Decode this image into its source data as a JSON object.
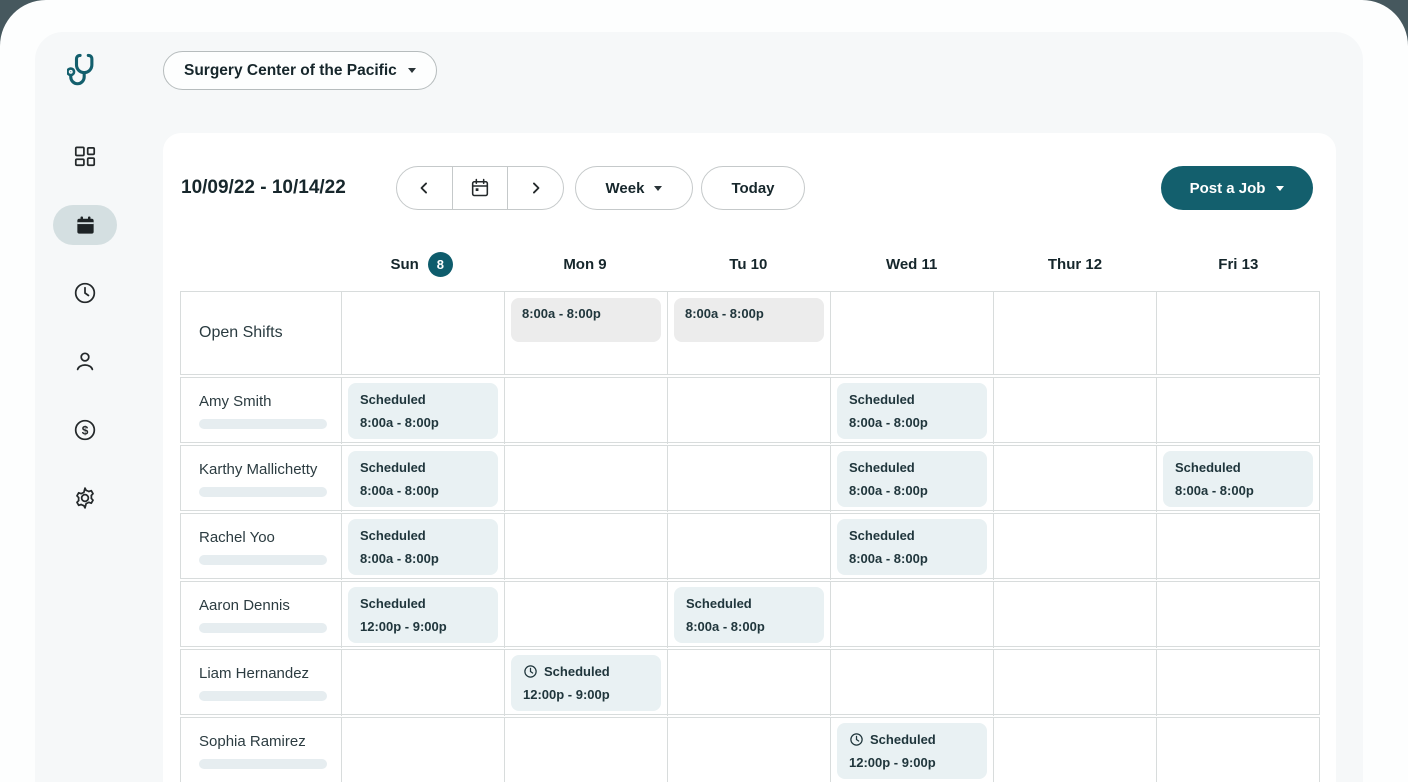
{
  "colors": {
    "accent_teal": "#135f6d",
    "badge_teal": "#0e5c6c",
    "open_chip_bg": "#ececec",
    "scheduled_chip_bg": "#e9f1f3",
    "active_nav_bg": "#d4dfe1",
    "panel_bg": "#f6f8f9",
    "outer_bg": "#46585e"
  },
  "org_selector": {
    "label": "Surgery Center of the Pacific"
  },
  "sidebar": {
    "items": [
      {
        "icon": "dashboard-icon",
        "active": false
      },
      {
        "icon": "calendar-icon",
        "active": true
      },
      {
        "icon": "clock-icon",
        "active": false
      },
      {
        "icon": "person-icon",
        "active": false
      },
      {
        "icon": "dollar-icon",
        "active": false
      },
      {
        "icon": "gear-icon",
        "active": false
      }
    ]
  },
  "toolbar": {
    "date_range": "10/09/22 - 10/14/22",
    "view": "Week",
    "today": "Today",
    "post_job": "Post a Job"
  },
  "calendar": {
    "day_headers": [
      {
        "label": "Sun",
        "badge": "8"
      },
      {
        "label": "Mon 9"
      },
      {
        "label": "Tu 10"
      },
      {
        "label": "Wed 11"
      },
      {
        "label": "Thur 12"
      },
      {
        "label": "Fri 13"
      }
    ],
    "rows": [
      {
        "name": "Open Shifts",
        "kind": "open",
        "cells": [
          null,
          {
            "variant": "open",
            "time": "8:00a - 8:00p"
          },
          {
            "variant": "open",
            "time": "8:00a - 8:00p"
          },
          null,
          null,
          null
        ]
      },
      {
        "name": "Amy Smith",
        "kind": "person",
        "cells": [
          {
            "variant": "scheduled",
            "label": "Scheduled",
            "time": "8:00a - 8:00p"
          },
          null,
          null,
          {
            "variant": "scheduled",
            "label": "Scheduled",
            "time": "8:00a - 8:00p"
          },
          null,
          null
        ]
      },
      {
        "name": "Karthy Mallichetty",
        "kind": "person",
        "cells": [
          {
            "variant": "scheduled",
            "label": "Scheduled",
            "time": "8:00a - 8:00p"
          },
          null,
          null,
          {
            "variant": "scheduled",
            "label": "Scheduled",
            "time": "8:00a - 8:00p"
          },
          null,
          {
            "variant": "scheduled",
            "label": "Scheduled",
            "time": "8:00a - 8:00p"
          }
        ]
      },
      {
        "name": "Rachel Yoo",
        "kind": "person",
        "cells": [
          {
            "variant": "scheduled",
            "label": "Scheduled",
            "time": "8:00a - 8:00p"
          },
          null,
          null,
          {
            "variant": "scheduled",
            "label": "Scheduled",
            "time": "8:00a - 8:00p"
          },
          null,
          null
        ]
      },
      {
        "name": "Aaron Dennis",
        "kind": "person",
        "cells": [
          {
            "variant": "scheduled",
            "label": "Scheduled",
            "time": "12:00p - 9:00p"
          },
          null,
          {
            "variant": "scheduled",
            "label": "Scheduled",
            "time": "8:00a - 8:00p"
          },
          null,
          null,
          null
        ]
      },
      {
        "name": "Liam Hernandez",
        "kind": "person",
        "cells": [
          null,
          {
            "variant": "scheduled",
            "label": "Scheduled",
            "time": "12:00p - 9:00p",
            "icon": "clock-icon"
          },
          null,
          null,
          null,
          null
        ]
      },
      {
        "name": "Sophia Ramirez",
        "kind": "person",
        "cells": [
          null,
          null,
          null,
          {
            "variant": "scheduled",
            "label": "Scheduled",
            "time": "12:00p - 9:00p",
            "icon": "clock-icon"
          },
          null,
          null
        ]
      }
    ]
  }
}
